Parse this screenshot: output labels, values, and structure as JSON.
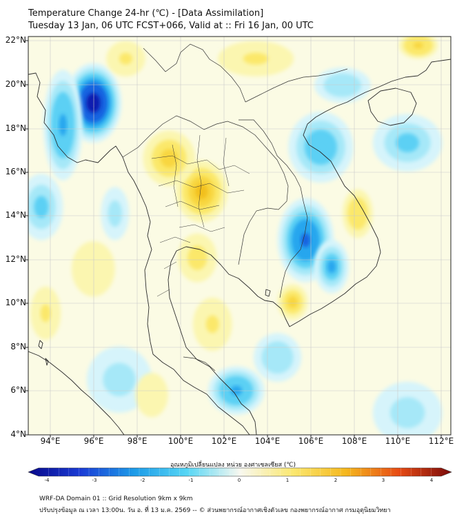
{
  "header": {
    "title_line1": "Temperature Change 24-hr (℃) - [Data Assimilation]",
    "title_line2": "Tuesday 13 Jan, 06 UTC FCST+066, Valid at :: Fri 16 Jan, 00 UTC"
  },
  "map": {
    "lat_labels": [
      "22°N",
      "20°N",
      "18°N",
      "16°N",
      "14°N",
      "12°N",
      "10°N",
      "8°N",
      "6°N",
      "4°N"
    ],
    "lon_labels": [
      "94°E",
      "96°E",
      "98°E",
      "100°E",
      "102°E",
      "104°E",
      "106°E",
      "108°E",
      "110°E",
      "112°E"
    ],
    "lat_range": [
      4,
      22
    ],
    "lon_range": [
      93,
      112.5
    ],
    "anomalies": [
      {
        "lon": 96,
        "lat": 19,
        "value": -4,
        "sx": 2.6,
        "sy": 3.6
      },
      {
        "lon": 94.6,
        "lat": 18,
        "value": -2.2,
        "sx": 1.8,
        "sy": 5
      },
      {
        "lon": 93.6,
        "lat": 14.3,
        "value": -1.4,
        "sx": 2,
        "sy": 3
      },
      {
        "lon": 97,
        "lat": 14,
        "value": -0.8,
        "sx": 1.3,
        "sy": 2.4
      },
      {
        "lon": 105.8,
        "lat": 12.8,
        "value": -2.8,
        "sx": 2.6,
        "sy": 3.8
      },
      {
        "lon": 107,
        "lat": 11.6,
        "value": -1.8,
        "sx": 1.6,
        "sy": 2.4
      },
      {
        "lon": 106.5,
        "lat": 17,
        "value": -1.6,
        "sx": 3,
        "sy": 3.2
      },
      {
        "lon": 110.5,
        "lat": 17.2,
        "value": -1.2,
        "sx": 3.2,
        "sy": 2.6
      },
      {
        "lon": 107.5,
        "lat": 19.8,
        "value": -1.0,
        "sx": 2.6,
        "sy": 1.6
      },
      {
        "lon": 102.6,
        "lat": 6,
        "value": -2.2,
        "sx": 2.6,
        "sy": 2.2
      },
      {
        "lon": 104.5,
        "lat": 7.5,
        "value": -0.9,
        "sx": 2.2,
        "sy": 2.2
      },
      {
        "lon": 110.5,
        "lat": 5,
        "value": -0.8,
        "sx": 3.2,
        "sy": 2.8
      },
      {
        "lon": 97.2,
        "lat": 6.5,
        "value": -0.6,
        "sx": 3,
        "sy": 3
      },
      {
        "lon": 101,
        "lat": 15,
        "value": 1.9,
        "sx": 2.4,
        "sy": 2.8
      },
      {
        "lon": 99.5,
        "lat": 16.5,
        "value": 1.2,
        "sx": 2.4,
        "sy": 2.5
      },
      {
        "lon": 100.8,
        "lat": 12,
        "value": 0.8,
        "sx": 1.8,
        "sy": 2.2
      },
      {
        "lon": 101.5,
        "lat": 9,
        "value": 0.9,
        "sx": 1.8,
        "sy": 2.4
      },
      {
        "lon": 105.2,
        "lat": 10,
        "value": 1.2,
        "sx": 1.4,
        "sy": 1.6
      },
      {
        "lon": 108.2,
        "lat": 14,
        "value": 1.1,
        "sx": 1.4,
        "sy": 2.2
      },
      {
        "lon": 103.5,
        "lat": 21,
        "value": 1.0,
        "sx": 3.5,
        "sy": 1.6
      },
      {
        "lon": 111,
        "lat": 21.6,
        "value": 1.5,
        "sx": 1.8,
        "sy": 1.2
      },
      {
        "lon": 97.5,
        "lat": 21,
        "value": 0.9,
        "sx": 1.8,
        "sy": 1.6
      },
      {
        "lon": 93.8,
        "lat": 9.5,
        "value": 1.0,
        "sx": 1.4,
        "sy": 2.4
      },
      {
        "lon": 96,
        "lat": 11.5,
        "value": 0.6,
        "sx": 2,
        "sy": 2.5
      },
      {
        "lon": 98.7,
        "lat": 5.8,
        "value": 0.6,
        "sx": 1.5,
        "sy": 2
      }
    ]
  },
  "colorbar": {
    "label": "อุณหภูมิเปลี่ยนแปลง หน่วย องศาเซลเซียส (℃)",
    "ticks": [
      "-4",
      "-3",
      "-2",
      "-1",
      "0",
      "1",
      "2",
      "3",
      "4"
    ],
    "range": [
      -4,
      4
    ]
  },
  "footer": {
    "line1": "WRF-DA Domain 01 :: Grid Resolution 9km x 9km",
    "line2": "ปรับปรุงข้อมูล ณ เวลา 13:00น. วัน อ. ที่ 13 ม.ค. 2569 -- © ส่วนพยากรณ์อากาศเชิงตัวเลข กองพยากรณ์อากาศ กรมอุตุนิยมวิทยา"
  }
}
